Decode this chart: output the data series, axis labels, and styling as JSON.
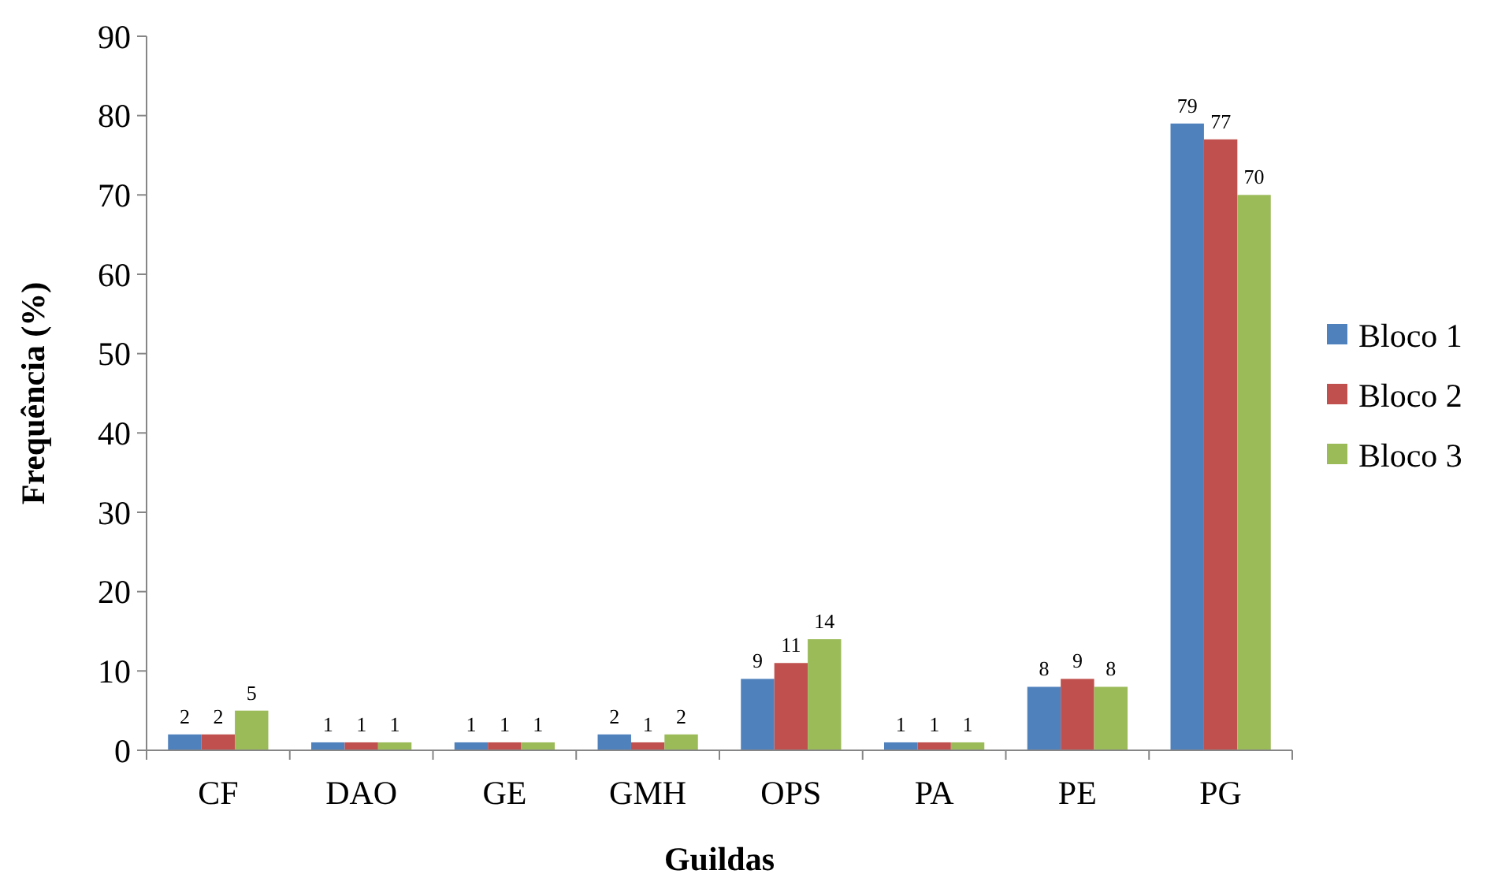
{
  "chart_data": {
    "type": "bar",
    "xlabel": "Guildas",
    "ylabel": "Frequência (%)",
    "categories": [
      "CF",
      "DAO",
      "GE",
      "GMH",
      "OPS",
      "PA",
      "PE",
      "PG"
    ],
    "series": [
      {
        "name": "Bloco 1",
        "color": "#4f81bd",
        "values": [
          2,
          1,
          1,
          2,
          9,
          1,
          8,
          79
        ]
      },
      {
        "name": "Bloco 2",
        "color": "#c0504d",
        "values": [
          2,
          1,
          1,
          1,
          11,
          1,
          9,
          77
        ]
      },
      {
        "name": "Bloco 3",
        "color": "#9bbb59",
        "values": [
          5,
          1,
          1,
          2,
          14,
          1,
          8,
          70
        ]
      }
    ],
    "ylim": [
      0,
      90
    ],
    "yticks": [
      0,
      10,
      20,
      30,
      40,
      50,
      60,
      70,
      80,
      90
    ],
    "grid": false,
    "legend": "right",
    "data_labels": true
  }
}
